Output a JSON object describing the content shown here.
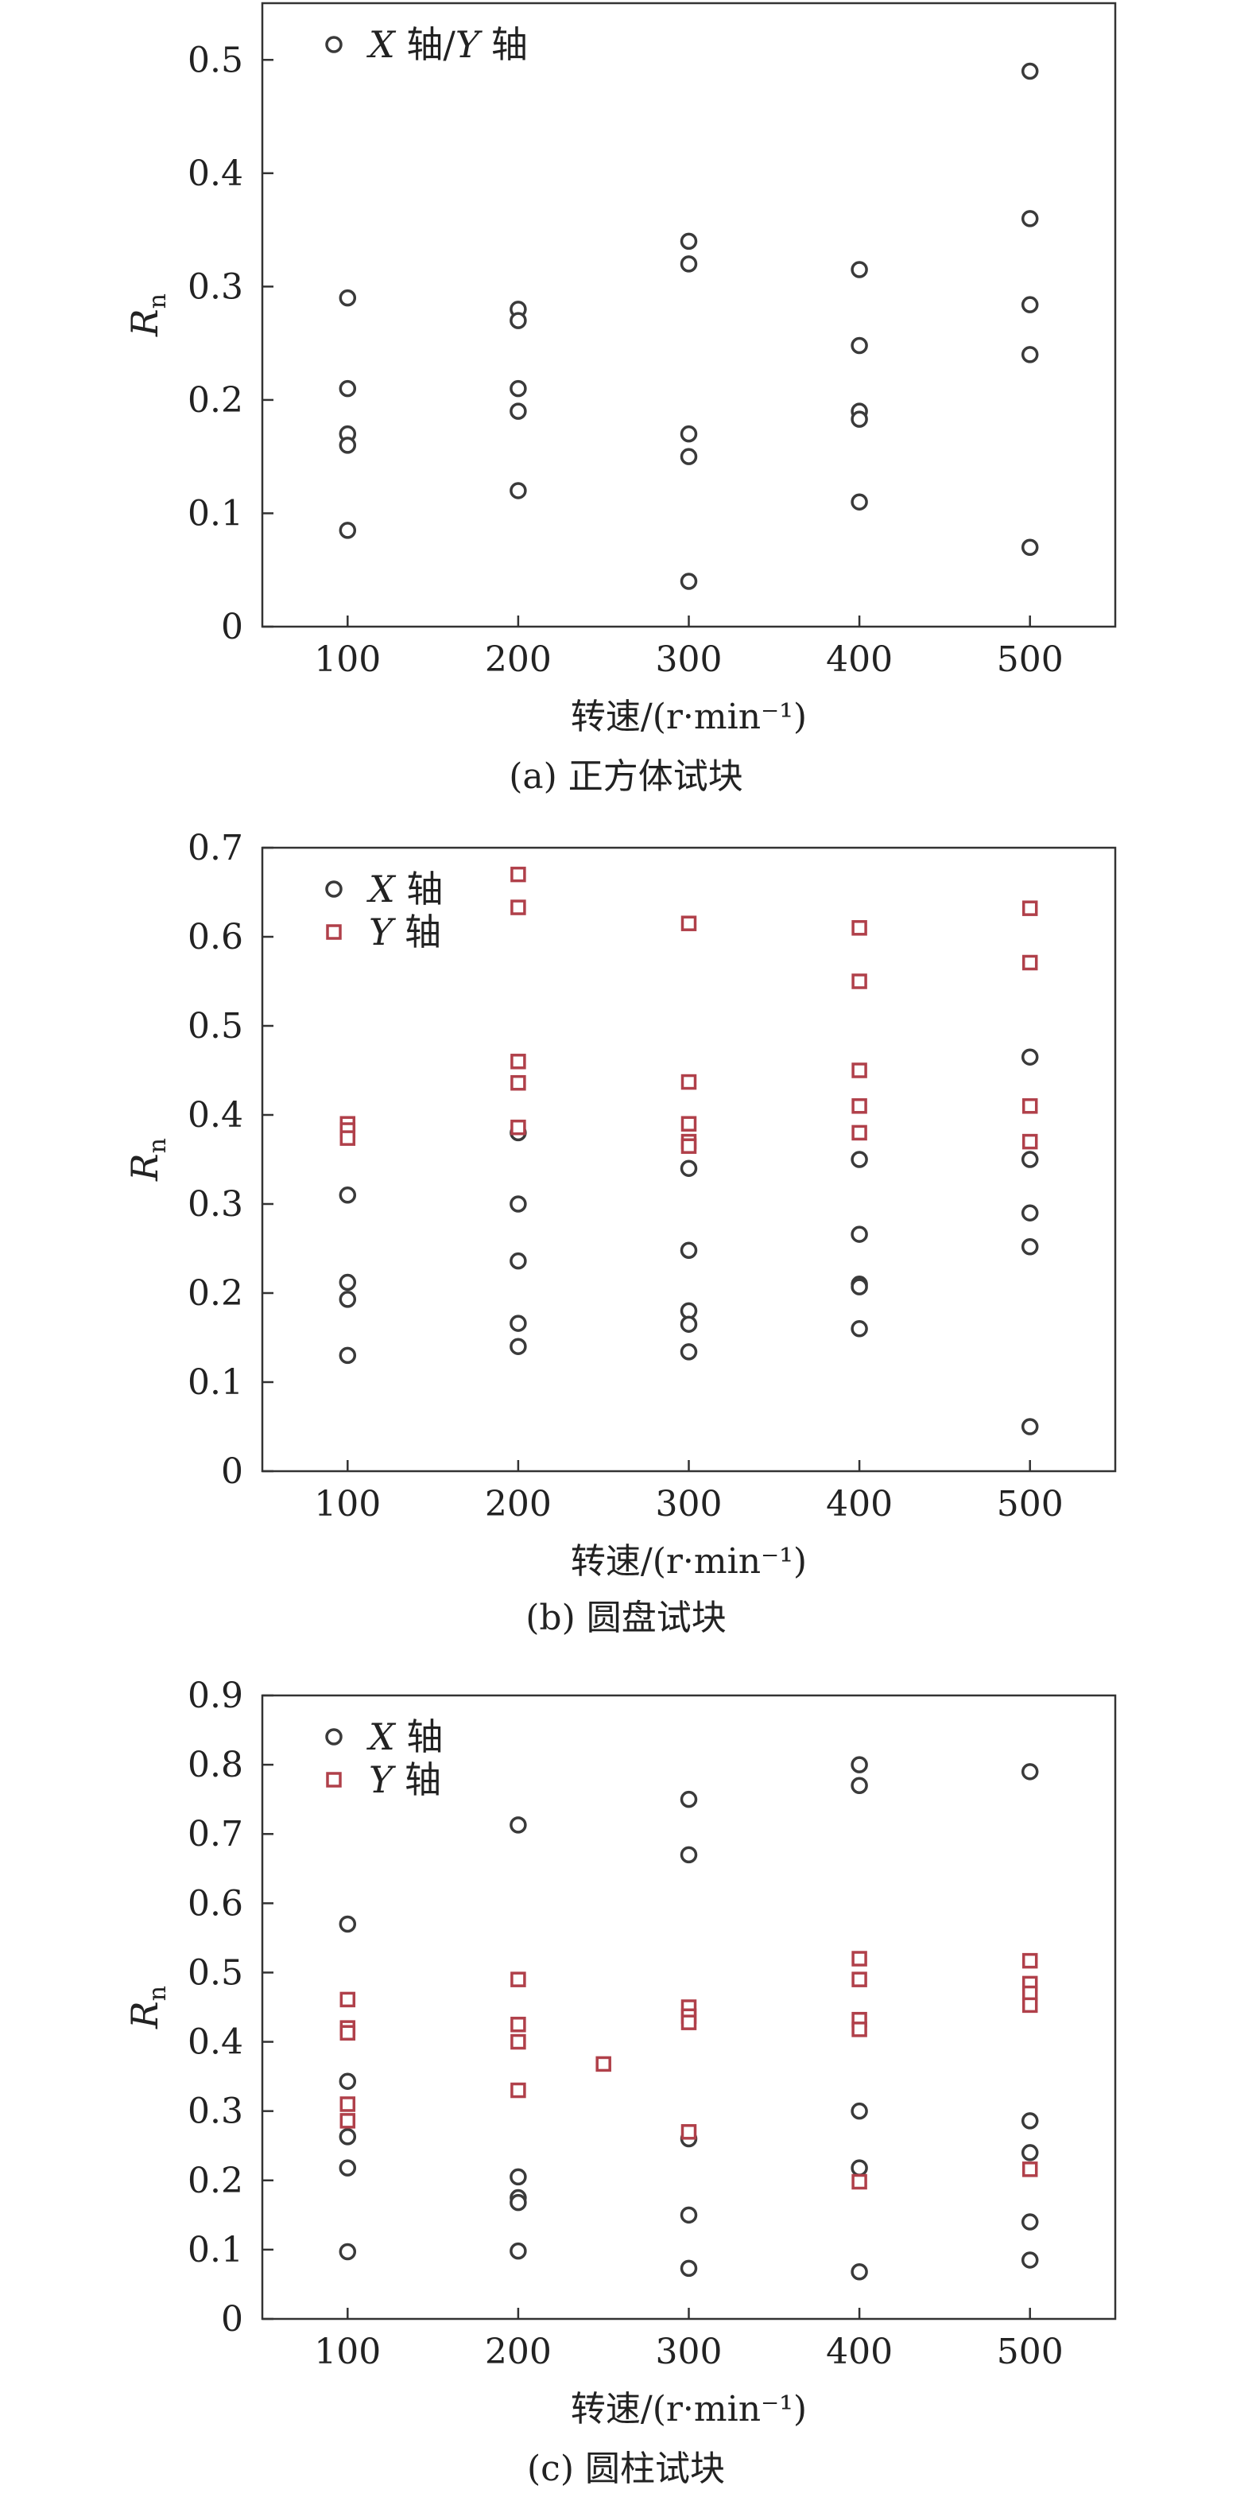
{
  "chart_data": [
    {
      "type": "scatter",
      "caption": "(a) 正方体试块",
      "xlabel": "转速/(r·min⁻¹)",
      "ylabel": "Rn",
      "xlim": [
        50,
        550
      ],
      "ylim": [
        0,
        0.55
      ],
      "xticks": [
        100,
        200,
        300,
        400,
        500
      ],
      "yticks": [
        0,
        0.1,
        0.2,
        0.3,
        0.4,
        0.5
      ],
      "ytick_labels": [
        "0",
        "0.1",
        "0.2",
        "0.3",
        "0.4",
        "0.5"
      ],
      "grid": false,
      "legend_position": "top-left",
      "series": [
        {
          "name": "X 轴/Y 轴",
          "marker": "circle",
          "color": "#3a3a3a",
          "points": [
            [
              100,
              0.29
            ],
            [
              100,
              0.21
            ],
            [
              100,
              0.17
            ],
            [
              100,
              0.16
            ],
            [
              100,
              0.085
            ],
            [
              200,
              0.28
            ],
            [
              200,
              0.27
            ],
            [
              200,
              0.21
            ],
            [
              200,
              0.19
            ],
            [
              200,
              0.12
            ],
            [
              300,
              0.34
            ],
            [
              300,
              0.32
            ],
            [
              300,
              0.17
            ],
            [
              300,
              0.15
            ],
            [
              300,
              0.04
            ],
            [
              400,
              0.315
            ],
            [
              400,
              0.248
            ],
            [
              400,
              0.19
            ],
            [
              400,
              0.183
            ],
            [
              400,
              0.11
            ],
            [
              500,
              0.49
            ],
            [
              500,
              0.36
            ],
            [
              500,
              0.284
            ],
            [
              500,
              0.24
            ],
            [
              500,
              0.07
            ]
          ]
        }
      ]
    },
    {
      "type": "scatter",
      "caption": "(b) 圆盘试块",
      "xlabel": "转速/(r·min⁻¹)",
      "ylabel": "Rn",
      "xlim": [
        50,
        550
      ],
      "ylim": [
        0,
        0.7
      ],
      "xticks": [
        100,
        200,
        300,
        400,
        500
      ],
      "yticks": [
        0,
        0.1,
        0.2,
        0.3,
        0.4,
        0.5,
        0.6,
        0.7
      ],
      "ytick_labels": [
        "0",
        "0.1",
        "0.2",
        "0.3",
        "0.4",
        "0.5",
        "0.6",
        "0.7"
      ],
      "grid": false,
      "legend_position": "top-left",
      "series": [
        {
          "name": "X 轴",
          "marker": "circle",
          "color": "#3a3a3a",
          "points": [
            [
              100,
              0.31
            ],
            [
              100,
              0.212
            ],
            [
              100,
              0.193
            ],
            [
              100,
              0.13
            ],
            [
              200,
              0.38
            ],
            [
              200,
              0.3
            ],
            [
              200,
              0.236
            ],
            [
              200,
              0.166
            ],
            [
              200,
              0.14
            ],
            [
              300,
              0.34
            ],
            [
              300,
              0.248
            ],
            [
              300,
              0.18
            ],
            [
              300,
              0.165
            ],
            [
              300,
              0.134
            ],
            [
              400,
              0.35
            ],
            [
              400,
              0.266
            ],
            [
              400,
              0.21
            ],
            [
              400,
              0.207
            ],
            [
              400,
              0.16
            ],
            [
              500,
              0.465
            ],
            [
              500,
              0.35
            ],
            [
              500,
              0.29
            ],
            [
              500,
              0.252
            ],
            [
              500,
              0.05
            ]
          ]
        },
        {
          "name": "Y 轴",
          "marker": "square",
          "color": "#b0404a",
          "points": [
            [
              100,
              0.39
            ],
            [
              100,
              0.383
            ],
            [
              100,
              0.374
            ],
            [
              200,
              0.67
            ],
            [
              200,
              0.633
            ],
            [
              200,
              0.46
            ],
            [
              200,
              0.436
            ],
            [
              200,
              0.386
            ],
            [
              300,
              0.615
            ],
            [
              300,
              0.437
            ],
            [
              300,
              0.39
            ],
            [
              300,
              0.37
            ],
            [
              300,
              0.365
            ],
            [
              400,
              0.61
            ],
            [
              400,
              0.55
            ],
            [
              400,
              0.45
            ],
            [
              400,
              0.41
            ],
            [
              400,
              0.38
            ],
            [
              500,
              0.632
            ],
            [
              500,
              0.571
            ],
            [
              500,
              0.41
            ],
            [
              500,
              0.37
            ]
          ]
        }
      ]
    },
    {
      "type": "scatter",
      "caption": "(c) 圆柱试块",
      "xlabel": "转速/(r·min⁻¹)",
      "ylabel": "Rn",
      "xlim": [
        50,
        550
      ],
      "ylim": [
        0,
        0.9
      ],
      "xticks": [
        100,
        200,
        300,
        400,
        500
      ],
      "yticks": [
        0,
        0.1,
        0.2,
        0.3,
        0.4,
        0.5,
        0.6,
        0.7,
        0.8,
        0.9
      ],
      "ytick_labels": [
        "0",
        "0.1",
        "0.2",
        "0.3",
        "0.4",
        "0.5",
        "0.6",
        "0.7",
        "0.8",
        "0.9"
      ],
      "grid": false,
      "legend_position": "top-left",
      "series": [
        {
          "name": "X 轴",
          "marker": "circle",
          "color": "#3a3a3a",
          "points": [
            [
              100,
              0.57
            ],
            [
              100,
              0.343
            ],
            [
              100,
              0.263
            ],
            [
              100,
              0.218
            ],
            [
              100,
              0.097
            ],
            [
              200,
              0.713
            ],
            [
              200,
              0.205
            ],
            [
              200,
              0.175
            ],
            [
              200,
              0.168
            ],
            [
              200,
              0.098
            ],
            [
              300,
              0.75
            ],
            [
              300,
              0.67
            ],
            [
              300,
              0.26
            ],
            [
              300,
              0.15
            ],
            [
              300,
              0.073
            ],
            [
              400,
              0.8
            ],
            [
              400,
              0.77
            ],
            [
              400,
              0.3
            ],
            [
              400,
              0.218
            ],
            [
              400,
              0.068
            ],
            [
              500,
              0.79
            ],
            [
              500,
              0.286
            ],
            [
              500,
              0.24
            ],
            [
              500,
              0.14
            ],
            [
              500,
              0.085
            ]
          ]
        },
        {
          "name": "Y 轴",
          "marker": "square",
          "color": "#b0404a",
          "points": [
            [
              100,
              0.461
            ],
            [
              100,
              0.42
            ],
            [
              100,
              0.413
            ],
            [
              100,
              0.31
            ],
            [
              100,
              0.286
            ],
            [
              200,
              0.49
            ],
            [
              200,
              0.425
            ],
            [
              200,
              0.4
            ],
            [
              200,
              0.33
            ],
            [
              250,
              0.368
            ],
            [
              300,
              0.45
            ],
            [
              300,
              0.437
            ],
            [
              300,
              0.428
            ],
            [
              300,
              0.27
            ],
            [
              400,
              0.52
            ],
            [
              400,
              0.49
            ],
            [
              400,
              0.432
            ],
            [
              400,
              0.418
            ],
            [
              400,
              0.198
            ],
            [
              500,
              0.517
            ],
            [
              500,
              0.484
            ],
            [
              500,
              0.47
            ],
            [
              500,
              0.453
            ],
            [
              500,
              0.216
            ]
          ]
        }
      ]
    }
  ]
}
